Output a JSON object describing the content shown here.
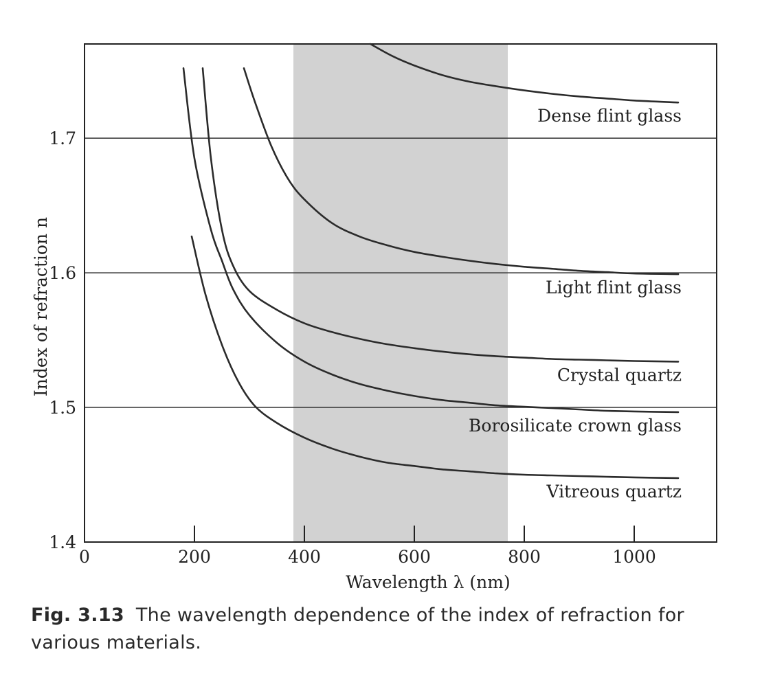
{
  "chart_data": {
    "type": "line",
    "title": "",
    "xlabel": "Wavelength λ (nm)",
    "ylabel": "Index of refraction n",
    "xlim": [
      0,
      1150
    ],
    "ylim": [
      1.4,
      1.77
    ],
    "xticks": [
      0,
      200,
      400,
      600,
      800,
      1000
    ],
    "xtick_labels": [
      "0",
      "200",
      "400",
      "600",
      "800",
      "1000"
    ],
    "yticks": [
      1.4,
      1.5,
      1.6,
      1.7
    ],
    "ytick_labels": [
      "1.4",
      "1.5",
      "1.6",
      "1.7"
    ],
    "grid": "horizontal lines at 1.5, 1.6, 1.7",
    "legend": "none (labels placed beside curves)",
    "shaded_region": {
      "x": [
        380,
        770
      ],
      "color": "#d2d2d2",
      "meaning": "visible spectrum"
    },
    "series": [
      {
        "name": "Dense flint glass",
        "x": [
          520,
          560,
          600,
          650,
          700,
          750,
          800,
          850,
          900,
          950,
          1000,
          1080
        ],
        "y": [
          1.77,
          1.761,
          1.754,
          1.747,
          1.742,
          1.7385,
          1.7355,
          1.733,
          1.731,
          1.7295,
          1.728,
          1.7265
        ]
      },
      {
        "name": "Light flint glass",
        "x": [
          290,
          310,
          340,
          370,
          400,
          450,
          500,
          550,
          600,
          650,
          700,
          750,
          800,
          850,
          900,
          950,
          1000,
          1080
        ],
        "y": [
          1.752,
          1.727,
          1.694,
          1.67,
          1.6545,
          1.637,
          1.627,
          1.6205,
          1.6155,
          1.612,
          1.609,
          1.6065,
          1.6045,
          1.603,
          1.6015,
          1.6005,
          1.5995,
          1.599
        ]
      },
      {
        "name": "Crystal quartz",
        "x": [
          215,
          230,
          250,
          270,
          300,
          350,
          400,
          450,
          500,
          550,
          600,
          650,
          700,
          750,
          800,
          850,
          900,
          950,
          1000,
          1080
        ],
        "y": [
          1.752,
          1.685,
          1.632,
          1.6055,
          1.5865,
          1.5725,
          1.5625,
          1.556,
          1.551,
          1.547,
          1.544,
          1.5415,
          1.5395,
          1.538,
          1.537,
          1.536,
          1.5355,
          1.535,
          1.5345,
          1.534
        ]
      },
      {
        "name": "Borosilicate crown glass",
        "x": [
          180,
          200,
          230,
          250,
          270,
          300,
          350,
          400,
          450,
          500,
          550,
          600,
          650,
          700,
          750,
          800,
          850,
          900,
          950,
          1000,
          1080
        ],
        "y": [
          1.752,
          1.685,
          1.632,
          1.609,
          1.588,
          1.5685,
          1.548,
          1.534,
          1.5245,
          1.5175,
          1.5125,
          1.5085,
          1.5055,
          1.5035,
          1.5015,
          1.5005,
          1.4995,
          1.4985,
          1.4975,
          1.497,
          1.4965
        ]
      },
      {
        "name": "Vitreous quartz",
        "x": [
          195,
          220,
          250,
          280,
          310,
          350,
          400,
          450,
          500,
          550,
          600,
          650,
          700,
          750,
          800,
          850,
          900,
          950,
          1000,
          1080
        ],
        "y": [
          1.627,
          1.584,
          1.5465,
          1.519,
          1.501,
          1.4885,
          1.4775,
          1.4695,
          1.4635,
          1.459,
          1.4565,
          1.454,
          1.4525,
          1.451,
          1.45,
          1.4495,
          1.449,
          1.4485,
          1.448,
          1.4475
        ]
      }
    ]
  },
  "caption": {
    "figure_number": "Fig. 3.13",
    "text": "The wavelength dependence of the index of refraction for various materials."
  }
}
